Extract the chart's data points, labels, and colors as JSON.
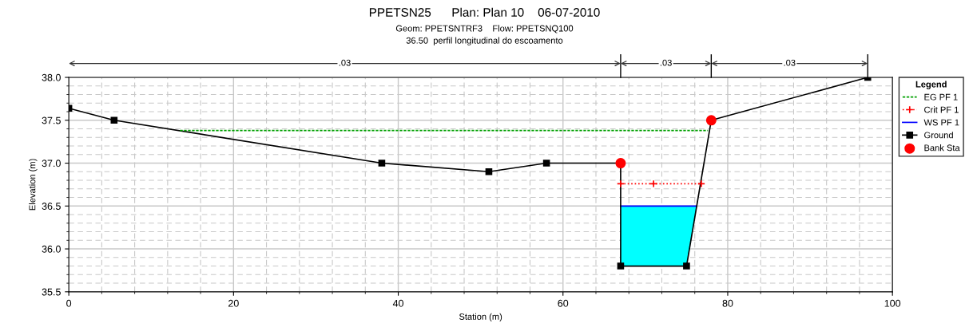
{
  "chart_data": {
    "type": "line",
    "title": "PPETSN25      Plan: Plan 10    06-07-2010",
    "subtitle": "Geom: PPETSNTRF3    Flow: PPETSNQ100\n36.50  perfil longitudinal do escoamento",
    "xlabel": "Station (m)",
    "ylabel": "Elevation (m)",
    "legend_title": "Legend",
    "xlim": [
      0,
      100
    ],
    "xticks": [
      0,
      20,
      40,
      60,
      80,
      100
    ],
    "ylim": [
      35.5,
      38.0
    ],
    "yticks": [
      35.5,
      {
        "value": 36,
        "label": "36.0"
      },
      36.5,
      {
        "value": 37,
        "label": "37.0"
      },
      37.5,
      {
        "value": 38,
        "label": "38.0"
      }
    ],
    "grid": true,
    "legend": "right",
    "annotations": [
      ".03",
      ".03",
      ".03"
    ],
    "series": [
      {
        "name": "EG PF 1",
        "color": "#00a000",
        "line_style": "dashed",
        "marker": "none",
        "x": [
          13.5,
          77.6
        ],
        "values": [
          37.38,
          37.38
        ]
      },
      {
        "name": "Crit PF 1",
        "color": "#ff0000",
        "line_style": "dotted",
        "marker": "cross",
        "x": [
          67,
          71,
          76.8
        ],
        "values": [
          36.76,
          36.76,
          36.76
        ]
      },
      {
        "name": "WS PF 1",
        "color": "#0000ff",
        "line_style": "solid",
        "marker": "none",
        "x": [
          67,
          76.24
        ],
        "values": [
          36.5,
          36.5
        ]
      },
      {
        "name": "Ground",
        "color": "#000000",
        "line_style": "solid",
        "marker": "square",
        "x": [
          0,
          5.5,
          38,
          51,
          58,
          67,
          67,
          75,
          78,
          97
        ],
        "values": [
          37.64,
          37.5,
          37.0,
          36.9,
          37.0,
          37.0,
          35.8,
          35.8,
          37.5,
          38.0
        ]
      },
      {
        "name": "Bank Sta",
        "type": "scatter",
        "color": "#ff0000",
        "marker": "circle",
        "x": [
          67,
          78
        ],
        "values": [
          37.0,
          37.5
        ]
      }
    ]
  }
}
